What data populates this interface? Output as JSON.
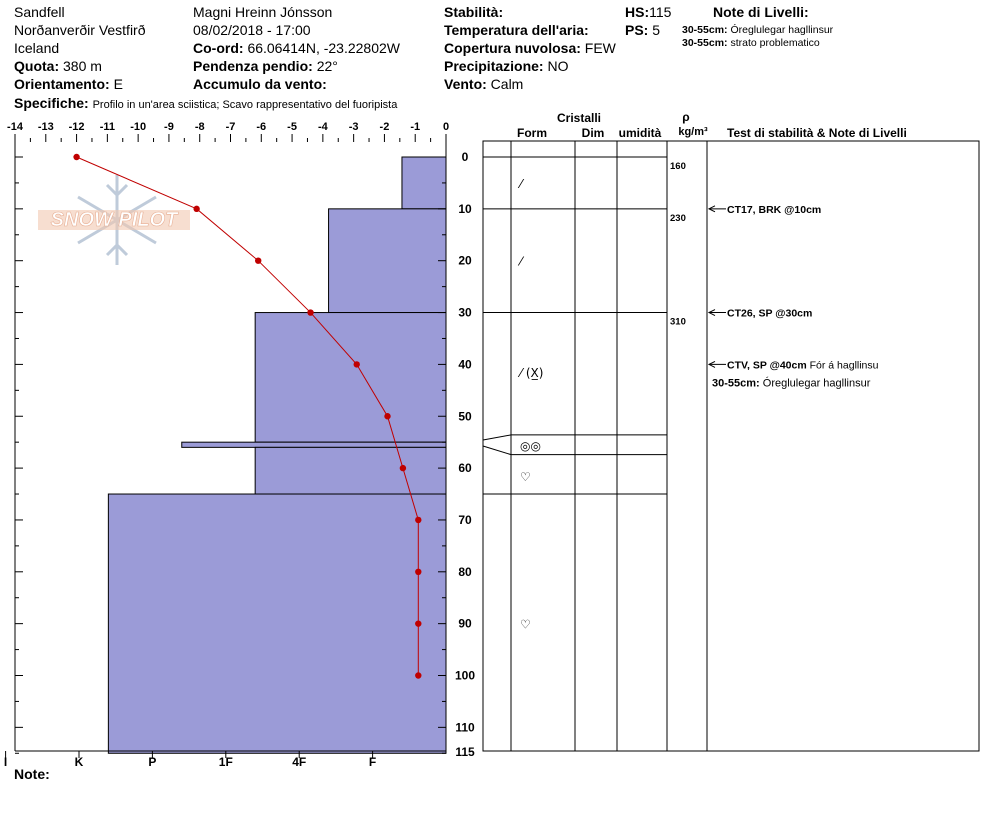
{
  "header": {
    "location": "Sandfell",
    "region": "Norðanverðir Vestfirð",
    "country": "Iceland",
    "elevation_label": "Quota:",
    "elevation_value": "380 m",
    "aspect_label": "Orientamento:",
    "aspect_value": "E",
    "observer": "Magni Hreinn Jónsson",
    "datetime": "08/02/2018 - 17:00",
    "coord_label": "Co-ord:",
    "coord_value": "66.06414N, -23.22802W",
    "slope_label": "Pendenza pendio:",
    "slope_value": "22°",
    "wind_loading_label": "Accumulo da vento:",
    "wind_loading_value": "",
    "specifics_label": "Specifiche:",
    "specifics_value": "Profilo in un'area sciistica; Scavo rappresentativo del fuoripista",
    "stability_label": "Stabilità:",
    "stability_value": "",
    "air_temp_label": "Temperatura dell'aria:",
    "air_temp_value": "",
    "sky_label": "Copertura nuvolosa:",
    "sky_value": "FEW",
    "precip_label": "Precipitazione:",
    "precip_value": "NO",
    "wind_label": "Vento:",
    "wind_value": "Calm",
    "hs_label": "HS:",
    "hs_value": "115",
    "ps_label": "PS:",
    "ps_value": "5",
    "layer_notes_label": "Note di Livelli:",
    "layer_notes": [
      {
        "range": "30-55cm:",
        "text": "Óreglulegar hagllinsur"
      },
      {
        "range": "30-55cm:",
        "text": "strato problematico"
      }
    ]
  },
  "watermark": "SNOW PILOT",
  "footer": {
    "note_label": "Note:"
  },
  "columns": {
    "crystals_title": "Cristalli",
    "form": "Form",
    "size": "Dim",
    "moisture": "umidità",
    "density_symbol": "ρ",
    "density_unit": "kg/m³",
    "tests": "Test di stabilità & Note di Livelli"
  },
  "chart_data": {
    "type": "snow-profile",
    "temperature_axis": {
      "ticks": [
        -14,
        -13,
        -12,
        -11,
        -10,
        -9,
        -8,
        -7,
        -6,
        -5,
        -4,
        -3,
        -2,
        -1,
        0
      ],
      "range": [
        -14,
        0
      ]
    },
    "depth_axis": {
      "ticks": [
        0,
        10,
        20,
        30,
        40,
        50,
        60,
        70,
        80,
        90,
        100,
        110,
        115
      ],
      "range": [
        0,
        115
      ]
    },
    "hardness_axis": {
      "labels": [
        "I",
        "K",
        "P",
        "1F",
        "4F",
        "F"
      ],
      "values": [
        6,
        5,
        4,
        3,
        2,
        1
      ]
    },
    "temperature_profile": [
      {
        "depth": 0,
        "temp": -12
      },
      {
        "depth": 10,
        "temp": -8.1
      },
      {
        "depth": 20,
        "temp": -6.1
      },
      {
        "depth": 30,
        "temp": -4.4
      },
      {
        "depth": 40,
        "temp": -2.9
      },
      {
        "depth": 50,
        "temp": -1.9
      },
      {
        "depth": 60,
        "temp": -1.4
      },
      {
        "depth": 70,
        "temp": -0.9
      },
      {
        "depth": 80,
        "temp": -0.9
      },
      {
        "depth": 90,
        "temp": -0.9
      },
      {
        "depth": 100,
        "temp": -0.9
      }
    ],
    "hardness_layers": [
      {
        "top": 0,
        "bottom": 10,
        "hardness": 0.6
      },
      {
        "top": 10,
        "bottom": 30,
        "hardness": 1.6
      },
      {
        "top": 30,
        "bottom": 55,
        "hardness": 2.6
      },
      {
        "top": 55,
        "bottom": 56,
        "hardness": 3.6
      },
      {
        "top": 56,
        "bottom": 65,
        "hardness": 2.6
      },
      {
        "top": 65,
        "bottom": 115,
        "hardness": 4.6
      }
    ],
    "layer_boundaries": [
      0,
      10,
      30,
      53.6,
      57.4,
      65
    ],
    "densities": [
      {
        "depth": 0,
        "value": "160"
      },
      {
        "depth": 10,
        "value": "230"
      },
      {
        "depth": 30,
        "value": "310"
      }
    ],
    "grain_forms": [
      {
        "depth": 5,
        "symbol": "⁄"
      },
      {
        "depth": 20,
        "symbol": "⁄"
      },
      {
        "depth": 41.5,
        "symbol": "⁄ (X̲)"
      },
      {
        "depth": 55.5,
        "symbol": "◎◎"
      },
      {
        "depth": 61.5,
        "symbol": "♡"
      },
      {
        "depth": 90,
        "symbol": "♡"
      }
    ],
    "tests": [
      {
        "depth": 10,
        "text": "CT17, BRK @10cm"
      },
      {
        "depth": 30,
        "text": "CT26, SP @30cm"
      },
      {
        "depth": 40,
        "text": "CTV, SP @40cm",
        "note": "Fór á hagllinsu"
      }
    ],
    "test_notes": [
      {
        "depth": 43.5,
        "range": "30-55cm:",
        "text": "Óreglulegar hagllinsur"
      }
    ]
  }
}
